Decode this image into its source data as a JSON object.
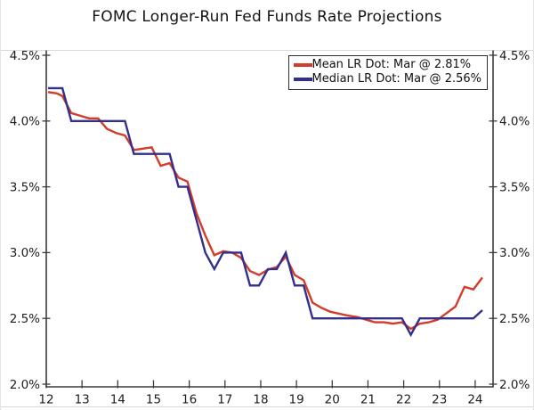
{
  "title": "FOMC Longer-Run Fed Funds Rate Projections",
  "colors": {
    "mean_line": "#d23c28",
    "median_line": "#322e8c",
    "axis": "#3c3c3c",
    "text": "#1c1c1c",
    "faint_rule": "#d9d9d9"
  },
  "legend": {
    "entries": [
      {
        "label": "Mean LR Dot: Mar @ 2.81%",
        "color": "#d23c28"
      },
      {
        "label": "Median LR Dot: Mar @ 2.56%",
        "color": "#322e8c"
      }
    ]
  },
  "chart_data": {
    "type": "line",
    "title": "FOMC Longer-Run Fed Funds Rate Projections",
    "xlabel": "",
    "ylabel": "",
    "xlim": [
      12.0,
      24.5
    ],
    "ylim": [
      2.0,
      4.5
    ],
    "grid": false,
    "legend_position": "top-right",
    "x_tick_labels": [
      "12",
      "13",
      "14",
      "15",
      "16",
      "17",
      "18",
      "19",
      "20",
      "21",
      "22",
      "23",
      "24"
    ],
    "x_tick_values": [
      12,
      13,
      14,
      15,
      16,
      17,
      18,
      19,
      20,
      21,
      22,
      23,
      24
    ],
    "y_tick_labels": [
      "4.5%",
      "4.0%",
      "3.5%",
      "3.0%",
      "2.5%",
      "2.0%"
    ],
    "y_tick_values": [
      4.5,
      4.0,
      3.5,
      3.0,
      2.5,
      2.0
    ],
    "y_axis_mirrored_right": true,
    "x": [
      12.05,
      12.3,
      12.45,
      12.7,
      12.95,
      13.2,
      13.45,
      13.7,
      13.95,
      14.2,
      14.45,
      14.7,
      14.95,
      15.2,
      15.45,
      15.7,
      15.95,
      16.2,
      16.45,
      16.7,
      16.95,
      17.2,
      17.45,
      17.7,
      17.95,
      18.2,
      18.45,
      18.7,
      18.95,
      19.2,
      19.45,
      19.7,
      19.95,
      20.45,
      20.7,
      20.95,
      21.2,
      21.45,
      21.7,
      21.95,
      22.2,
      22.45,
      22.7,
      22.95,
      23.2,
      23.45,
      23.7,
      23.95,
      24.2
    ],
    "series": [
      {
        "name": "Mean LR Dot: Mar @ 2.81%",
        "color": "#d23c28",
        "values": [
          4.22,
          4.21,
          4.19,
          4.06,
          4.04,
          4.02,
          4.02,
          3.94,
          3.91,
          3.89,
          3.78,
          3.79,
          3.8,
          3.66,
          3.68,
          3.57,
          3.54,
          3.3,
          3.13,
          2.98,
          3.01,
          3.0,
          2.96,
          2.86,
          2.83,
          2.87,
          2.89,
          2.97,
          2.83,
          2.79,
          2.62,
          2.58,
          2.55,
          2.52,
          2.51,
          2.49,
          2.47,
          2.47,
          2.46,
          2.47,
          2.42,
          2.46,
          2.47,
          2.49,
          2.54,
          2.59,
          2.74,
          2.72,
          2.81
        ]
      },
      {
        "name": "Median LR Dot: Mar @ 2.56%",
        "color": "#322e8c",
        "values": [
          4.25,
          4.25,
          4.25,
          4.0,
          4.0,
          4.0,
          4.0,
          4.0,
          4.0,
          4.0,
          3.75,
          3.75,
          3.75,
          3.75,
          3.75,
          3.5,
          3.5,
          3.25,
          3.0,
          2.875,
          3.0,
          3.0,
          3.0,
          2.75,
          2.75,
          2.875,
          2.875,
          3.0,
          2.75,
          2.75,
          2.5,
          2.5,
          2.5,
          2.5,
          2.5,
          2.5,
          2.5,
          2.5,
          2.5,
          2.5,
          2.375,
          2.5,
          2.5,
          2.5,
          2.5,
          2.5,
          2.5,
          2.5,
          2.5625
        ]
      }
    ]
  }
}
